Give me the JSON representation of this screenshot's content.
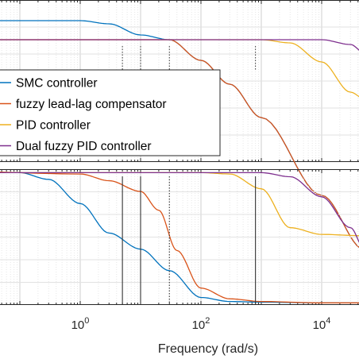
{
  "chart_data": [
    {
      "type": "line",
      "panel": "magnitude",
      "title": "",
      "xlabel": "",
      "ylabel": "",
      "xscale": "log",
      "xlim": [
        0.01,
        50000
      ],
      "grid": true,
      "legend": {
        "placement": "lower-left",
        "entries": [
          "SMC controller",
          "fuzzy lead-lag compensator",
          "PID controller",
          "Dual fuzzy PID controller"
        ]
      },
      "series": [
        {
          "name": "SMC controller",
          "color": "#0072BD",
          "x": [
            0.01,
            0.1,
            1,
            3,
            10,
            30,
            100,
            300,
            1000,
            10000,
            50000
          ],
          "y": [
            0.88,
            0.88,
            0.88,
            0.86,
            0.79,
            0.76,
            0.63,
            0.48,
            0.27,
            -0.22,
            -0.56
          ]
        },
        {
          "name": "fuzzy lead-lag compensator",
          "color": "#D95319",
          "x": [
            0.01,
            1,
            10,
            30,
            100,
            300,
            1000,
            10000,
            50000
          ],
          "y": [
            0.76,
            0.76,
            0.76,
            0.76,
            0.63,
            0.48,
            0.27,
            -0.22,
            -0.56
          ]
        },
        {
          "name": "PID controller",
          "color": "#EDB120",
          "x": [
            0.01,
            100,
            1000,
            3000,
            10000,
            30000,
            50000
          ],
          "y": [
            0.76,
            0.76,
            0.76,
            0.74,
            0.62,
            0.43,
            0.39
          ]
        },
        {
          "name": "Dual fuzzy PID controller",
          "color": "#7E2F8E",
          "x": [
            0.01,
            1000,
            10000,
            30000,
            50000
          ],
          "y": [
            0.76,
            0.76,
            0.76,
            0.73,
            0.68
          ]
        }
      ]
    },
    {
      "type": "line",
      "panel": "phase",
      "title": "",
      "xlabel": "Frequency (rad/s)",
      "ylabel": "",
      "xscale": "log",
      "xlim": [
        0.01,
        50000
      ],
      "grid": true,
      "xticks": [
        {
          "base": "10",
          "exp": "0",
          "value": 1
        },
        {
          "base": "10",
          "exp": "2",
          "value": 100
        },
        {
          "base": "10",
          "exp": "4",
          "value": 10000
        }
      ],
      "series": [
        {
          "name": "SMC controller",
          "color": "#0072BD",
          "x": [
            0.01,
            0.1,
            0.3,
            1,
            3,
            10,
            30,
            100,
            300,
            1000,
            10000,
            50000
          ],
          "y": [
            0.99,
            0.98,
            0.93,
            0.75,
            0.53,
            0.41,
            0.25,
            0.05,
            0.02,
            0.015,
            0.01,
            0.01
          ]
        },
        {
          "name": "fuzzy lead-lag compensator",
          "color": "#D95319",
          "x": [
            0.01,
            1,
            3,
            10,
            20,
            40,
            100,
            300,
            1000,
            10000,
            50000
          ],
          "y": [
            0.99,
            0.97,
            0.92,
            0.84,
            0.7,
            0.4,
            0.12,
            0.04,
            0.02,
            0.01,
            0.01
          ]
        },
        {
          "name": "PID controller",
          "color": "#EDB120",
          "x": [
            0.01,
            100,
            300,
            1000,
            3000,
            10000,
            50000
          ],
          "y": [
            0.98,
            0.98,
            0.97,
            0.86,
            0.57,
            0.52,
            0.51
          ]
        },
        {
          "name": "Dual fuzzy PID controller",
          "color": "#7E2F8E",
          "x": [
            0.01,
            1000,
            3000,
            10000,
            30000,
            50000
          ],
          "y": [
            0.98,
            0.98,
            0.95,
            0.8,
            0.57,
            0.42
          ]
        }
      ]
    }
  ],
  "markers": [
    5,
    10,
    30,
    800
  ]
}
